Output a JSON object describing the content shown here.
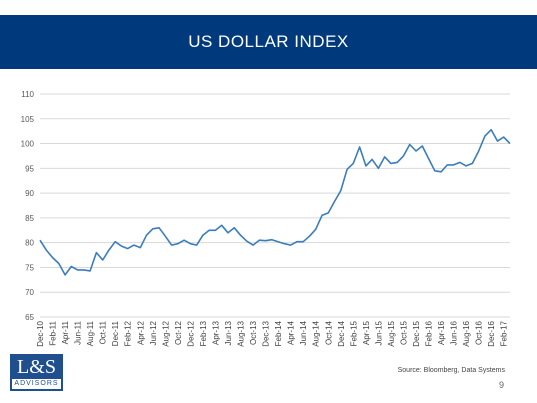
{
  "title": "US DOLLAR INDEX",
  "source": "Source:  Bloomberg, Data Systems",
  "page_number": "9",
  "logo": {
    "main": "L&S",
    "sub": "ADVISORS"
  },
  "colors": {
    "banner": "#003a7d",
    "line": "#3a7dbd",
    "grid": "#d9d9d9",
    "logo": "#1f4f8e"
  },
  "chart_data": {
    "type": "line",
    "title": "",
    "xlabel": "",
    "ylabel": "",
    "ylim": [
      65,
      110
    ],
    "yticks": [
      65,
      70,
      75,
      80,
      85,
      90,
      95,
      100,
      105,
      110
    ],
    "grid": true,
    "x_tick_labels": [
      "Dec-10",
      "Feb-11",
      "Apr-11",
      "Jun-11",
      "Aug-11",
      "Oct-11",
      "Dec-11",
      "Feb-12",
      "Apr-12",
      "Jun-12",
      "Aug-12",
      "Oct-12",
      "Dec-12",
      "Feb-13",
      "Apr-13",
      "Jun-13",
      "Aug-13",
      "Oct-13",
      "Dec-13",
      "Feb-14",
      "Apr-14",
      "Jun-14",
      "Aug-14",
      "Oct-14",
      "Dec-14",
      "Feb-15",
      "Apr-15",
      "Jun-15",
      "Aug-15",
      "Oct-15",
      "Dec-15",
      "Feb-16",
      "Apr-16",
      "Jun-16",
      "Aug-16",
      "Oct-16",
      "Dec-16",
      "Feb-17"
    ],
    "series": [
      {
        "x": [
          "Dec-10",
          "Jan-11",
          "Feb-11",
          "Mar-11",
          "Apr-11",
          "May-11",
          "Jun-11",
          "Jul-11",
          "Aug-11",
          "Sep-11",
          "Oct-11",
          "Nov-11",
          "Dec-11",
          "Jan-12",
          "Feb-12",
          "Mar-12",
          "Apr-12",
          "May-12",
          "Jun-12",
          "Jul-12",
          "Aug-12",
          "Sep-12",
          "Oct-12",
          "Nov-12",
          "Dec-12",
          "Jan-13",
          "Feb-13",
          "Mar-13",
          "Apr-13",
          "May-13",
          "Jun-13",
          "Jul-13",
          "Aug-13",
          "Sep-13",
          "Oct-13",
          "Nov-13",
          "Dec-13",
          "Jan-14",
          "Feb-14",
          "Mar-14",
          "Apr-14",
          "May-14",
          "Jun-14",
          "Jul-14",
          "Aug-14",
          "Sep-14",
          "Oct-14",
          "Nov-14",
          "Dec-14",
          "Jan-15",
          "Feb-15",
          "Mar-15",
          "Apr-15",
          "May-15",
          "Jun-15",
          "Jul-15",
          "Aug-15",
          "Sep-15",
          "Oct-15",
          "Nov-15",
          "Dec-15",
          "Jan-16",
          "Feb-16",
          "Mar-16",
          "Apr-16",
          "May-16",
          "Jun-16",
          "Jul-16",
          "Aug-16",
          "Sep-16",
          "Oct-16",
          "Nov-16",
          "Dec-16",
          "Jan-17",
          "Feb-17",
          "Mar-17"
        ],
        "values": [
          80.5,
          78.5,
          77.0,
          75.8,
          73.5,
          75.2,
          74.5,
          74.5,
          74.3,
          78.0,
          76.5,
          78.5,
          80.2,
          79.3,
          78.8,
          79.5,
          79.0,
          81.5,
          82.8,
          83.0,
          81.3,
          79.5,
          79.8,
          80.5,
          79.8,
          79.5,
          81.5,
          82.5,
          82.5,
          83.5,
          82.0,
          83.0,
          81.5,
          80.3,
          79.5,
          80.5,
          80.4,
          80.6,
          80.2,
          79.8,
          79.5,
          80.2,
          80.2,
          81.3,
          82.7,
          85.5,
          86.0,
          88.3,
          90.5,
          94.8,
          96.0,
          99.3,
          95.5,
          96.8,
          95.0,
          97.3,
          96.0,
          96.2,
          97.5,
          99.8,
          98.5,
          99.5,
          97.0,
          94.5,
          94.3,
          95.7,
          95.7,
          96.2,
          95.5,
          96.0,
          98.5,
          101.5,
          102.8,
          100.5,
          101.3,
          100.0
        ]
      }
    ]
  }
}
